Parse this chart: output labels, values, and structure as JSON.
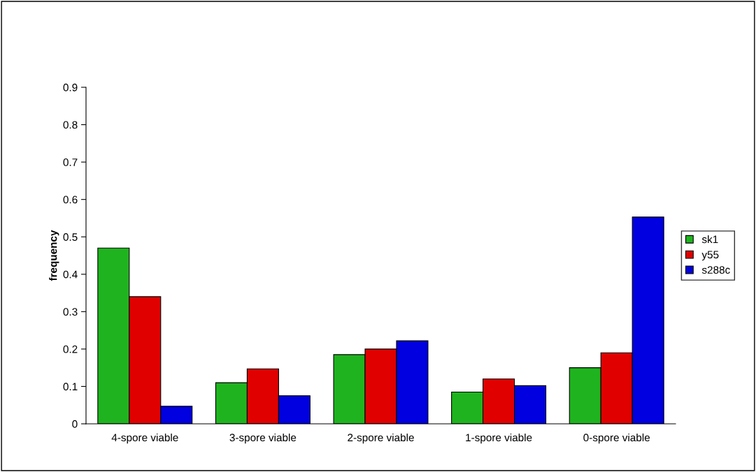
{
  "chart_data": {
    "type": "bar",
    "ylabel": "frequency",
    "categories": [
      "4-spore viable",
      "3-spore viable",
      "2-spore viable",
      "1-spore viable",
      "0-spore viable"
    ],
    "series": [
      {
        "name": "sk1",
        "color": "#1fb41f",
        "values": [
          0.47,
          0.11,
          0.185,
          0.085,
          0.15
        ]
      },
      {
        "name": "y55",
        "color": "#e00000",
        "values": [
          0.34,
          0.147,
          0.2,
          0.12,
          0.19
        ]
      },
      {
        "name": "s288c",
        "color": "#0000e0",
        "values": [
          0.047,
          0.075,
          0.222,
          0.102,
          0.553
        ]
      }
    ],
    "ylim": [
      0,
      0.9
    ],
    "yticks": [
      0,
      0.1,
      0.2,
      0.3,
      0.4,
      0.5,
      0.6,
      0.7,
      0.8,
      0.9
    ],
    "grid": false,
    "legend": "right"
  }
}
